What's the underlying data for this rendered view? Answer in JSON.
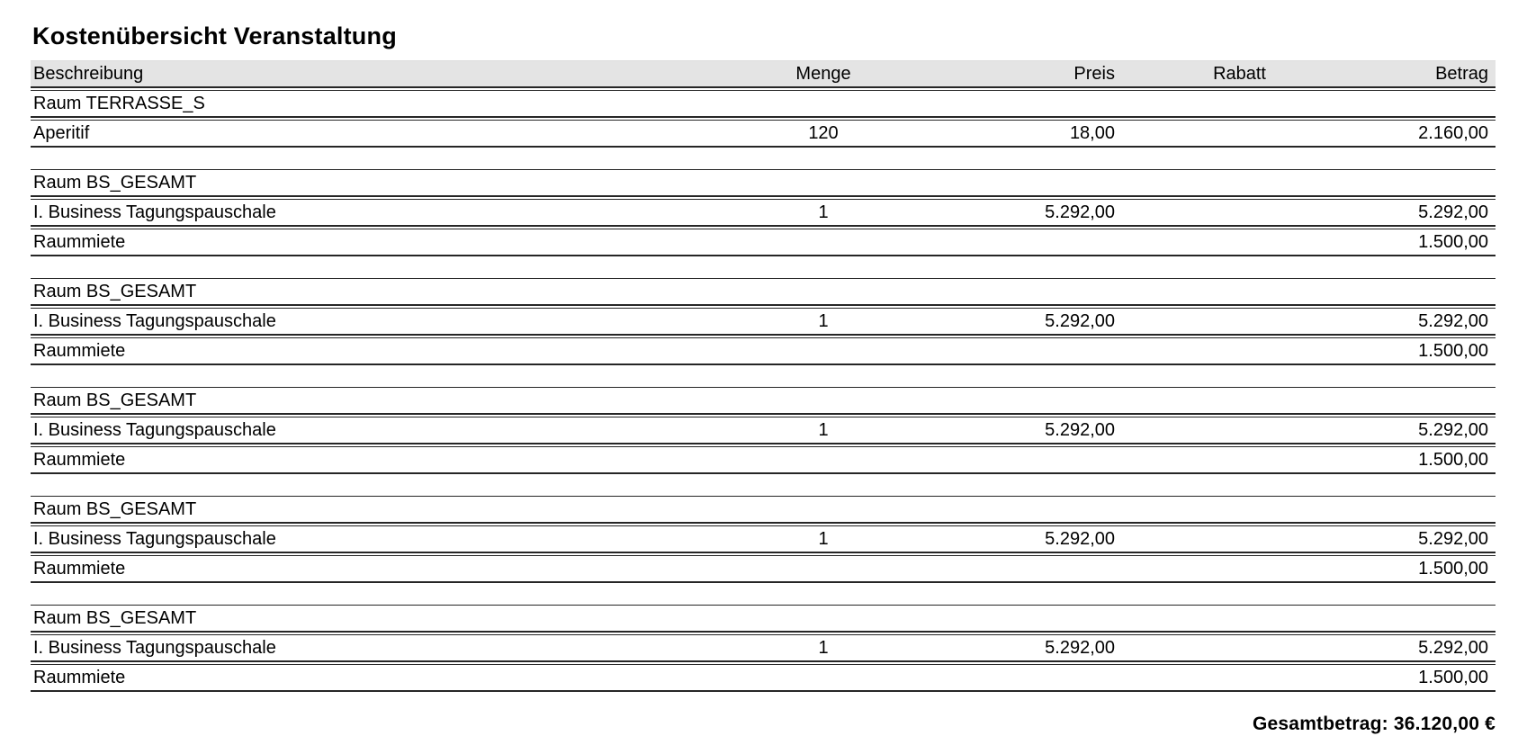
{
  "title": "Kostenübersicht Veranstaltung",
  "table": {
    "columns": [
      {
        "key": "beschreibung",
        "label": "Beschreibung"
      },
      {
        "key": "menge",
        "label": "Menge"
      },
      {
        "key": "preis",
        "label": "Preis"
      },
      {
        "key": "rabatt",
        "label": "Rabatt"
      },
      {
        "key": "betrag",
        "label": "Betrag"
      }
    ],
    "groups": [
      {
        "room": "Raum TERRASSE_S",
        "items": [
          {
            "beschreibung": "Aperitif",
            "menge": "120",
            "preis": "18,00",
            "rabatt": "",
            "betrag": "2.160,00"
          }
        ]
      },
      {
        "room": "Raum BS_GESAMT",
        "items": [
          {
            "beschreibung": "I. Business Tagungspauschale",
            "menge": "1",
            "preis": "5.292,00",
            "rabatt": "",
            "betrag": "5.292,00"
          },
          {
            "beschreibung": "Raummiete",
            "menge": "",
            "preis": "",
            "rabatt": "",
            "betrag": "1.500,00"
          }
        ]
      },
      {
        "room": "Raum BS_GESAMT",
        "items": [
          {
            "beschreibung": "I. Business Tagungspauschale",
            "menge": "1",
            "preis": "5.292,00",
            "rabatt": "",
            "betrag": "5.292,00"
          },
          {
            "beschreibung": "Raummiete",
            "menge": "",
            "preis": "",
            "rabatt": "",
            "betrag": "1.500,00"
          }
        ]
      },
      {
        "room": "Raum BS_GESAMT",
        "items": [
          {
            "beschreibung": "I. Business Tagungspauschale",
            "menge": "1",
            "preis": "5.292,00",
            "rabatt": "",
            "betrag": "5.292,00"
          },
          {
            "beschreibung": "Raummiete",
            "menge": "",
            "preis": "",
            "rabatt": "",
            "betrag": "1.500,00"
          }
        ]
      },
      {
        "room": "Raum BS_GESAMT",
        "items": [
          {
            "beschreibung": "I. Business Tagungspauschale",
            "menge": "1",
            "preis": "5.292,00",
            "rabatt": "",
            "betrag": "5.292,00"
          },
          {
            "beschreibung": "Raummiete",
            "menge": "",
            "preis": "",
            "rabatt": "",
            "betrag": "1.500,00"
          }
        ]
      },
      {
        "room": "Raum BS_GESAMT",
        "items": [
          {
            "beschreibung": "I. Business Tagungspauschale",
            "menge": "1",
            "preis": "5.292,00",
            "rabatt": "",
            "betrag": "5.292,00"
          },
          {
            "beschreibung": "Raummiete",
            "menge": "",
            "preis": "",
            "rabatt": "",
            "betrag": "1.500,00"
          }
        ]
      }
    ]
  },
  "total_text": "Gesamtbetrag: 36.120,00 €"
}
